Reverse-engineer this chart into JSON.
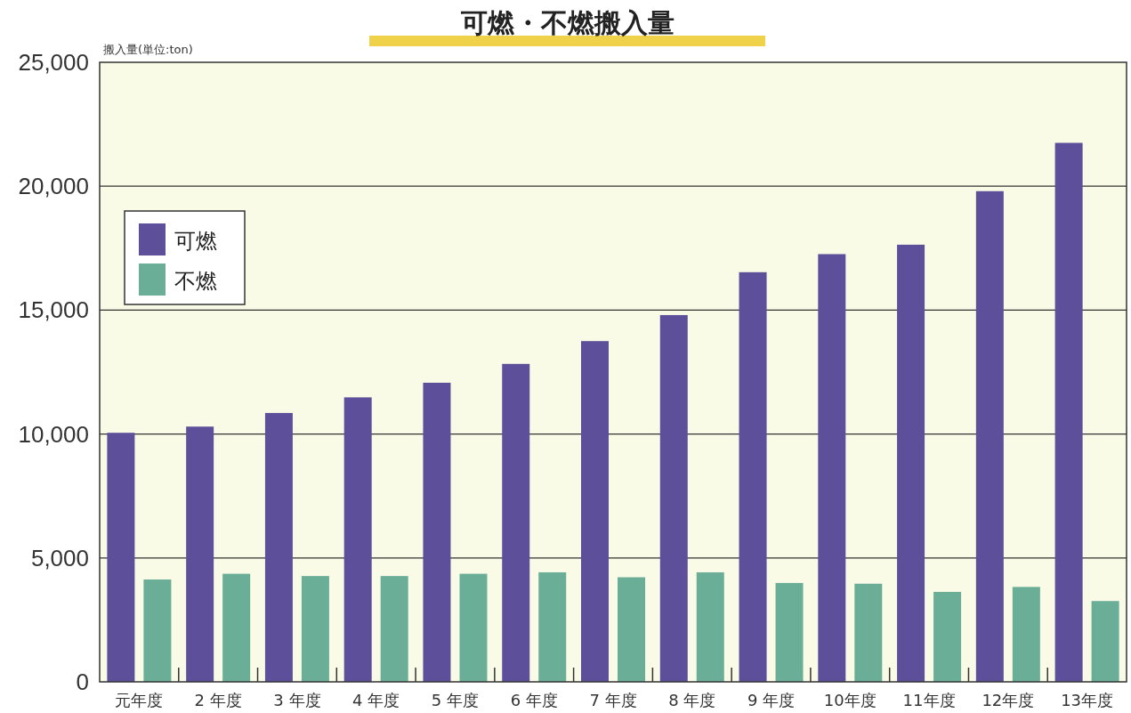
{
  "chart_data": {
    "type": "bar",
    "title": "可燃・不燃搬入量",
    "ylabel": "搬入量(単位:ton)",
    "categories": [
      "元年度",
      "2 年度",
      "3 年度",
      "4 年度",
      "5 年度",
      "6 年度",
      "7 年度",
      "8 年度",
      "9 年度",
      "10年度",
      "11年度",
      "12年度",
      "13年度"
    ],
    "series": [
      {
        "name": "可燃",
        "color": "#5e4f9a",
        "values": [
          10050,
          10300,
          10850,
          11480,
          12070,
          12830,
          13750,
          14800,
          16530,
          17260,
          17640,
          19800,
          21750
        ]
      },
      {
        "name": "不燃",
        "color": "#6aae98",
        "values": [
          4130,
          4360,
          4270,
          4270,
          4360,
          4420,
          4220,
          4420,
          3990,
          3960,
          3630,
          3830,
          3260
        ]
      }
    ],
    "ylim": [
      0,
      25000
    ],
    "yticks": [
      {
        "value": 0,
        "label": "0"
      },
      {
        "value": 5000,
        "label": "5,000"
      },
      {
        "value": 10000,
        "label": "10,000"
      },
      {
        "value": 15000,
        "label": "15,000"
      },
      {
        "value": 20000,
        "label": "20,000"
      },
      {
        "value": 25000,
        "label": "25,000"
      }
    ],
    "grid": "y",
    "legend": "top left"
  }
}
